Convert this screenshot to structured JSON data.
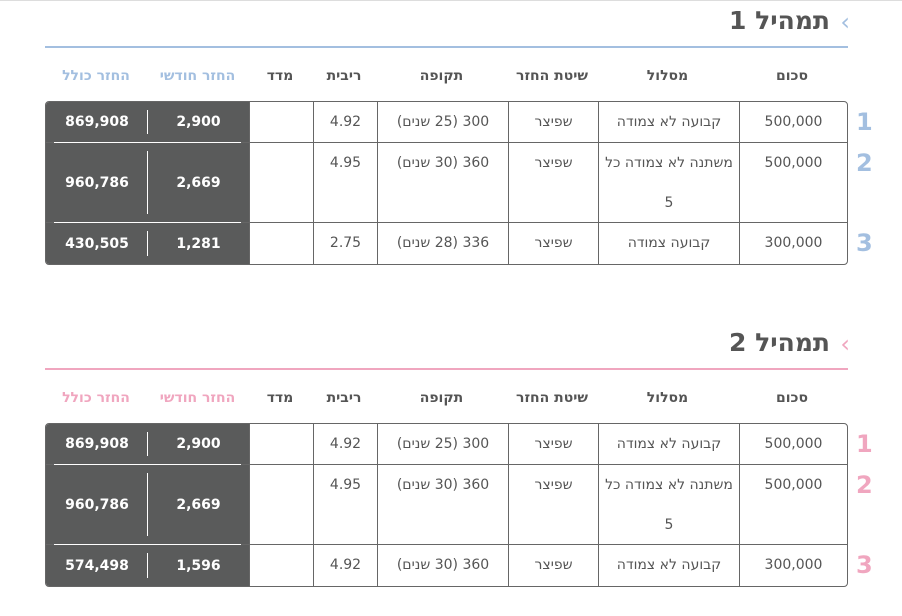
{
  "headers": {
    "total": "החזר כולל",
    "monthly": "החזר חודשי",
    "madad": "מדד",
    "ribit": "ריבית",
    "tkufa": "תקופה",
    "shita": "שיטת החזר",
    "maslul": "מסלול",
    "sum": "סכום"
  },
  "sections": [
    {
      "title": "תמהיל 1",
      "accent": "#a3bfe0",
      "rows": [
        {
          "num": "1",
          "sum": "500,000",
          "maslul": "קבועה לא צמודה",
          "shita": "שפיצר",
          "tkufa": "300 (25 שנים)",
          "ribit": "4.92",
          "madad": "",
          "monthly": "2,900",
          "total": "869,908"
        },
        {
          "num": "2",
          "sum": "500,000",
          "maslul": "משתנה לא צמודה כל 5",
          "shita": "שפיצר",
          "tkufa": "360 (30 שנים)",
          "ribit": "4.95",
          "madad": "",
          "monthly": "2,669",
          "total": "960,786"
        },
        {
          "num": "3",
          "sum": "300,000",
          "maslul": "קבועה צמודה",
          "shita": "שפיצר",
          "tkufa": "336 (28 שנים)",
          "ribit": "2.75",
          "madad": "",
          "monthly": "1,281",
          "total": "430,505"
        }
      ]
    },
    {
      "title": "תמהיל 2",
      "accent": "#f0a6bf",
      "rows": [
        {
          "num": "1",
          "sum": "500,000",
          "maslul": "קבועה לא צמודה",
          "shita": "שפיצר",
          "tkufa": "300 (25 שנים)",
          "ribit": "4.92",
          "madad": "",
          "monthly": "2,900",
          "total": "869,908"
        },
        {
          "num": "2",
          "sum": "500,000",
          "maslul": "משתנה לא צמודה כל 5",
          "shita": "שפיצר",
          "tkufa": "360 (30 שנים)",
          "ribit": "4.95",
          "madad": "",
          "monthly": "2,669",
          "total": "960,786"
        },
        {
          "num": "3",
          "sum": "300,000",
          "maslul": "קבועה לא צמודה",
          "shita": "שפיצר",
          "tkufa": "360 (30 שנים)",
          "ribit": "4.92",
          "madad": "",
          "monthly": "1,596",
          "total": "574,498"
        }
      ]
    }
  ]
}
